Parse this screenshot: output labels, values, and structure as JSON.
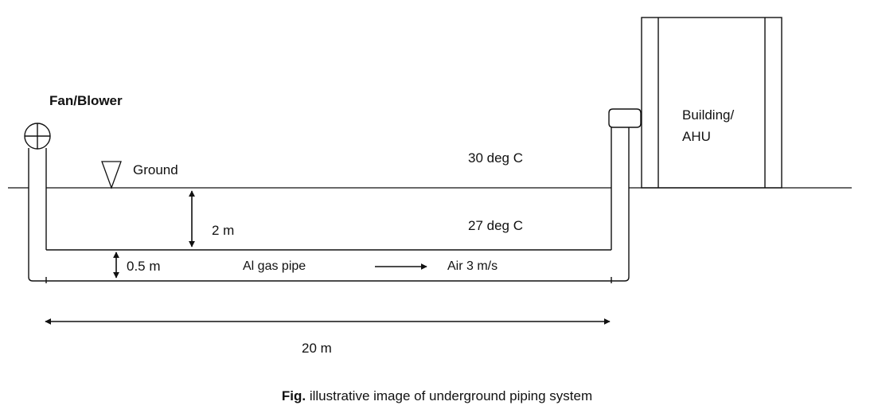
{
  "labels": {
    "fan_blower": "Fan/Blower",
    "ground": "Ground",
    "building_line1": "Building/",
    "building_line2": "AHU",
    "temp_surface": "30 deg C",
    "temp_depth": "27 deg C",
    "depth": "2 m",
    "pipe_diameter": "0.5 m",
    "pipe_material": "Al gas pipe",
    "air_flow": "Air 3 m/s",
    "length": "20 m"
  },
  "caption": {
    "prefix": "Fig.",
    "text": " illustrative image of underground piping system"
  },
  "icons": {
    "fan": "circle-cross-icon",
    "ground_marker": "inverted-triangle-icon",
    "flow": "arrow-right-icon"
  }
}
